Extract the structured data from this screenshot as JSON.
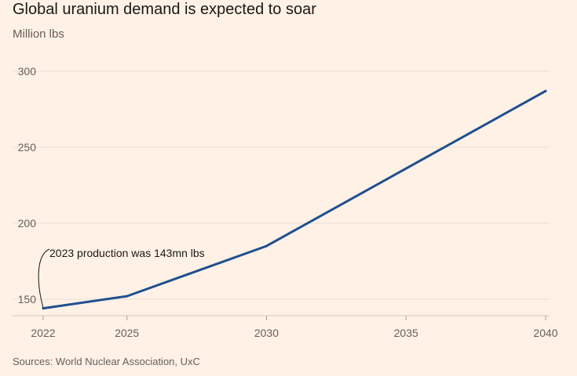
{
  "header": {
    "title": "Global uranium demand is expected to soar",
    "subtitle": "Million lbs"
  },
  "footer": {
    "source": "Sources: World Nuclear Association, UxC"
  },
  "colors": {
    "background": "#fff1e5",
    "line": "#1f4f8f",
    "grid": "#e9dfd5",
    "text": "#66605c"
  },
  "chart_data": {
    "type": "line",
    "title": "Global uranium demand is expected to soar",
    "ylabel": "Million lbs",
    "xlabel": "",
    "x": [
      2022,
      2025,
      2030,
      2040
    ],
    "series": [
      {
        "values": [
          144,
          152,
          185,
          287
        ]
      }
    ],
    "xlim": [
      2022,
      2040
    ],
    "ylim": [
      140,
      300
    ],
    "x_ticks": [
      "2022",
      "2025",
      "2030",
      "2035",
      "2040"
    ],
    "y_ticks": [
      "150",
      "200",
      "250",
      "300"
    ],
    "grid": "horizontal",
    "annotations": [
      {
        "text": "2023 production was 143mn lbs",
        "x": 2022,
        "y": 144
      }
    ]
  }
}
